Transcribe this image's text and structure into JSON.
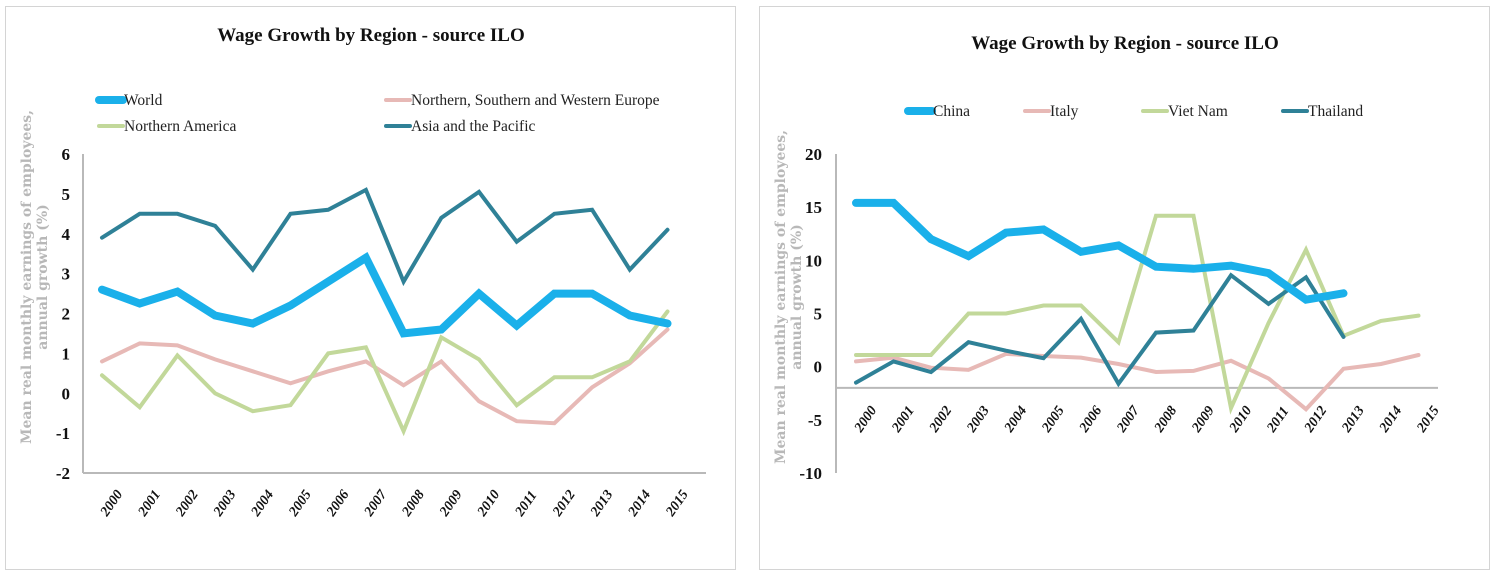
{
  "chart_data": [
    {
      "type": "line",
      "title": "Wage Growth by Region - source ILO",
      "ylabel": "Mean real monthly earnings of employees, annual growth (%)",
      "xlabel": "",
      "ylim": [
        -2,
        6
      ],
      "yticks": [
        6,
        5,
        4,
        3,
        2,
        1,
        0,
        -1,
        -2
      ],
      "x_axis_crosses_at": -2,
      "grid": false,
      "legend_position": "top",
      "categories": [
        "2000",
        "2001",
        "2002",
        "2003",
        "2004",
        "2005",
        "2006",
        "2007",
        "2008",
        "2009",
        "2010",
        "2011",
        "2012",
        "2013",
        "2014",
        "2015"
      ],
      "series": [
        {
          "name": "World",
          "color": "#1ab0ea",
          "emphasis": "thick",
          "values": [
            2.6,
            2.25,
            2.55,
            1.95,
            1.75,
            2.2,
            2.8,
            3.4,
            1.5,
            1.6,
            2.5,
            1.7,
            2.5,
            2.5,
            1.95,
            1.75
          ]
        },
        {
          "name": "Northern, Southern and Western Europe",
          "color": "#e7b9b6",
          "emphasis": "normal",
          "values": [
            0.8,
            1.25,
            1.2,
            0.85,
            0.55,
            0.25,
            0.55,
            0.8,
            0.2,
            0.8,
            -0.2,
            -0.7,
            -0.75,
            0.15,
            0.75,
            1.6
          ]
        },
        {
          "name": "Northern America",
          "color": "#c2d89a",
          "emphasis": "normal",
          "values": [
            0.45,
            -0.35,
            0.95,
            0.0,
            -0.45,
            -0.3,
            1.0,
            1.15,
            -0.95,
            1.4,
            0.85,
            -0.3,
            0.4,
            0.4,
            0.8,
            2.05
          ]
        },
        {
          "name": "Asia and the Pacific",
          "color": "#2f8197",
          "emphasis": "normal",
          "values": [
            3.9,
            4.5,
            4.5,
            4.2,
            3.1,
            4.5,
            4.6,
            5.1,
            2.8,
            4.4,
            5.05,
            3.8,
            4.5,
            4.6,
            3.1,
            4.1
          ]
        }
      ]
    },
    {
      "type": "line",
      "title": "Wage Growth by Region - source ILO",
      "ylabel": "Mean real monthly earnings of employees, annual growth (%)",
      "xlabel": "",
      "ylim": [
        -10,
        20
      ],
      "yticks": [
        20,
        15,
        10,
        5,
        0,
        -5,
        -10
      ],
      "x_axis_crosses_at": -2,
      "grid": false,
      "legend_position": "top",
      "categories": [
        "2000",
        "2001",
        "2002",
        "2003",
        "2004",
        "2005",
        "2006",
        "2007",
        "2008",
        "2009",
        "2010",
        "2011",
        "2012",
        "2013",
        "2014",
        "2015"
      ],
      "series": [
        {
          "name": "China",
          "color": "#1ab0ea",
          "emphasis": "thick",
          "values": [
            15.4,
            15.4,
            12.0,
            10.4,
            12.6,
            12.9,
            10.8,
            11.4,
            9.4,
            9.2,
            9.5,
            8.8,
            6.3,
            6.9,
            null,
            null
          ]
        },
        {
          "name": "Italy",
          "color": "#e7b9b6",
          "emphasis": "normal",
          "values": [
            0.5,
            0.85,
            -0.1,
            -0.3,
            1.2,
            1.0,
            0.85,
            0.25,
            -0.5,
            -0.4,
            0.55,
            -1.1,
            -4.0,
            -0.2,
            0.25,
            1.1
          ]
        },
        {
          "name": "Viet Nam",
          "color": "#c2d89a",
          "emphasis": "normal",
          "values": [
            1.1,
            1.1,
            1.1,
            5.0,
            5.0,
            5.75,
            5.75,
            2.3,
            14.2,
            14.2,
            -3.9,
            4.1,
            11.0,
            2.9,
            4.3,
            4.8
          ]
        },
        {
          "name": "Thailand",
          "color": "#2f8197",
          "emphasis": "normal",
          "values": [
            -1.5,
            0.5,
            -0.5,
            2.3,
            1.5,
            0.8,
            4.5,
            -1.6,
            3.2,
            3.4,
            8.6,
            5.9,
            8.4,
            2.8,
            null,
            null
          ]
        }
      ]
    }
  ]
}
